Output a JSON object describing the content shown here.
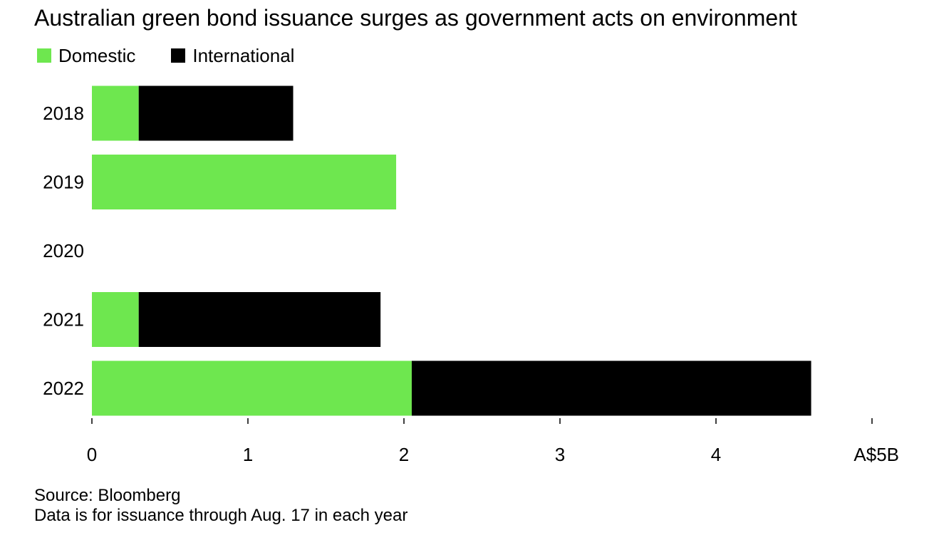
{
  "title": "Australian green bond issuance surges as government acts on environment",
  "legend": {
    "domestic": "Domestic",
    "international": "International"
  },
  "colors": {
    "domestic": "#6ee74f",
    "international": "#000000",
    "text": "#000000",
    "axis": "#000000"
  },
  "footer": {
    "source": "Source: Bloomberg",
    "note": "Data is for issuance through Aug. 17 in each year"
  },
  "chart_data": {
    "type": "bar",
    "orientation": "horizontal",
    "stacked": true,
    "title": "Australian green bond issuance surges as government acts on environment",
    "categories": [
      "2018",
      "2019",
      "2020",
      "2021",
      "2022"
    ],
    "series": [
      {
        "name": "Domestic",
        "values": [
          0.3,
          1.95,
          0,
          0.3,
          2.05
        ]
      },
      {
        "name": "International",
        "values": [
          0.99,
          0,
          0,
          1.55,
          2.56
        ]
      }
    ],
    "xlim": [
      0,
      5
    ],
    "xticks": [
      0,
      1,
      2,
      3,
      4,
      5
    ],
    "xtick_labels": [
      "0",
      "1",
      "2",
      "3",
      "4",
      "A$5B"
    ],
    "grid": false,
    "legend_position": "top-left"
  }
}
